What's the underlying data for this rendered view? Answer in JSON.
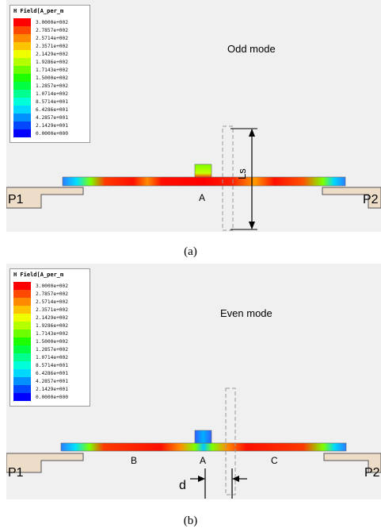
{
  "panel_a": {
    "legend": {
      "title": "H Field[A_per_m",
      "entries": [
        {
          "value": "3.0000e+002",
          "color": "#ff0000"
        },
        {
          "value": "2.7857e+002",
          "color": "#ff4800"
        },
        {
          "value": "2.5714e+002",
          "color": "#ff8a00"
        },
        {
          "value": "2.3571e+002",
          "color": "#ffc400"
        },
        {
          "value": "2.1429e+002",
          "color": "#f0ff00"
        },
        {
          "value": "1.9286e+002",
          "color": "#b4ff00"
        },
        {
          "value": "1.7143e+002",
          "color": "#6cff00"
        },
        {
          "value": "1.5000e+002",
          "color": "#1eff00"
        },
        {
          "value": "1.2857e+002",
          "color": "#00ff42"
        },
        {
          "value": "1.0714e+002",
          "color": "#00ff8e"
        },
        {
          "value": "8.5714e+001",
          "color": "#00ffd8"
        },
        {
          "value": "6.4286e+001",
          "color": "#00d8ff"
        },
        {
          "value": "4.2857e+001",
          "color": "#0090ff"
        },
        {
          "value": "2.1429e+001",
          "color": "#0048ff"
        },
        {
          "value": "0.0000e+000",
          "color": "#0000ff"
        }
      ]
    },
    "mode_label": "Odd mode",
    "port_left": "P1",
    "port_right": "P2",
    "point_a": "A",
    "dimension_label": "Ls"
  },
  "caption_a": "(a)",
  "panel_b": {
    "legend": {
      "title": "H Field[A_per_m",
      "entries": [
        {
          "value": "3.0000e+002",
          "color": "#ff0000"
        },
        {
          "value": "2.7857e+002",
          "color": "#ff4800"
        },
        {
          "value": "2.5714e+002",
          "color": "#ff8a00"
        },
        {
          "value": "2.3571e+002",
          "color": "#ffc400"
        },
        {
          "value": "2.1429e+002",
          "color": "#f0ff00"
        },
        {
          "value": "1.9286e+002",
          "color": "#b4ff00"
        },
        {
          "value": "1.7143e+002",
          "color": "#6cff00"
        },
        {
          "value": "1.5000e+002",
          "color": "#1eff00"
        },
        {
          "value": "1.2857e+002",
          "color": "#00ff42"
        },
        {
          "value": "1.0714e+002",
          "color": "#00ff8e"
        },
        {
          "value": "8.5714e+001",
          "color": "#00ffd8"
        },
        {
          "value": "6.4286e+001",
          "color": "#00d8ff"
        },
        {
          "value": "4.2857e+001",
          "color": "#0090ff"
        },
        {
          "value": "2.1429e+001",
          "color": "#0048ff"
        },
        {
          "value": "0.0000e+000",
          "color": "#0000ff"
        }
      ]
    },
    "mode_label": "Even mode",
    "port_left": "P1",
    "port_right": "P2",
    "point_a": "A",
    "point_b": "B",
    "point_c": "C",
    "dimension_label": "d"
  },
  "caption_b": "(b)"
}
